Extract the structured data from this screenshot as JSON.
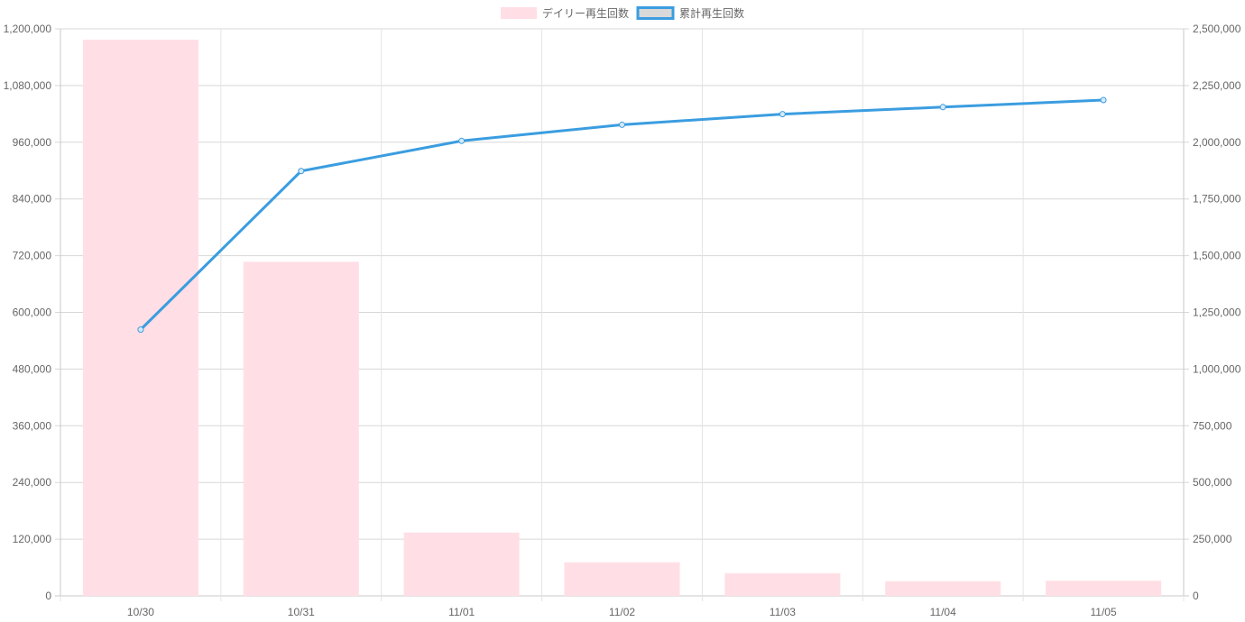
{
  "chart_data": {
    "type": "bar",
    "categories": [
      "10/30",
      "10/31",
      "11/01",
      "11/02",
      "11/03",
      "11/04",
      "11/05"
    ],
    "series": [
      {
        "name": "デイリー再生回数",
        "type": "bar",
        "axis": "left",
        "color": "#ffdfe5",
        "values": [
          1177000,
          707000,
          134000,
          71000,
          48000,
          31000,
          32000
        ]
      },
      {
        "name": "累計再生回数",
        "type": "line",
        "axis": "right",
        "color": "#3b9de0",
        "values": [
          1174000,
          1873000,
          2006000,
          2077000,
          2124000,
          2155000,
          2186000
        ]
      }
    ],
    "y_left": {
      "ylim": [
        0,
        1200000
      ],
      "ticks": [
        "0",
        "120,000",
        "240,000",
        "360,000",
        "480,000",
        "600,000",
        "720,000",
        "840,000",
        "960,000",
        "1,080,000",
        "1,200,000"
      ]
    },
    "y_right": {
      "ylim": [
        0,
        2500000
      ],
      "ticks": [
        "0",
        "250,000",
        "500,000",
        "750,000",
        "1,000,000",
        "1,250,000",
        "1,500,000",
        "1,750,000",
        "2,000,000",
        "2,250,000",
        "2,500,000"
      ]
    },
    "legend_position": "top-center",
    "grid": true
  }
}
